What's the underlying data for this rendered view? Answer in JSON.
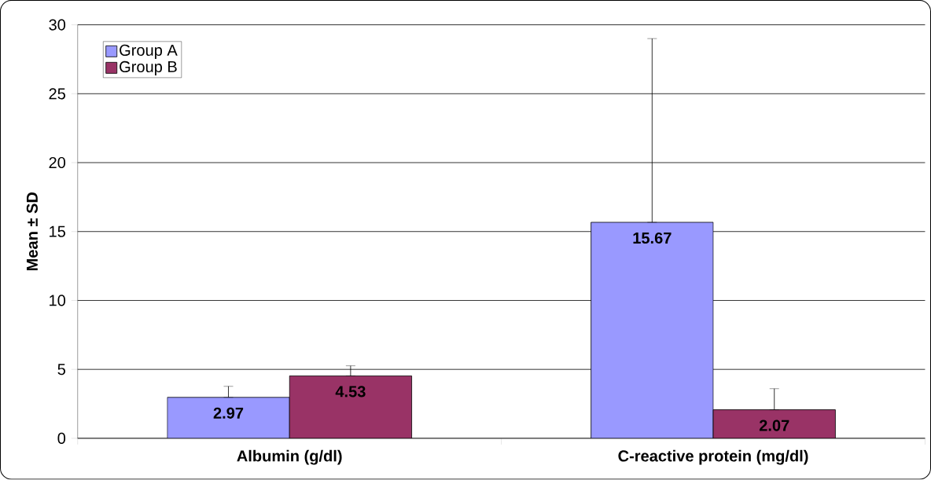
{
  "chart_data": {
    "type": "bar",
    "ylabel": "Mean ± SD",
    "categories": [
      "Albumin (g/dl)",
      "C-reactive protein (mg/dl)"
    ],
    "series": [
      {
        "name": "Group A",
        "color": "#9999ff",
        "values": [
          2.97,
          15.67
        ],
        "errors": [
          [
            2.97,
            3.77
          ],
          [
            15.67,
            29.0
          ]
        ]
      },
      {
        "name": "Group B",
        "color": "#993366",
        "values": [
          4.53,
          2.07
        ],
        "errors": [
          [
            4.53,
            5.26
          ],
          [
            2.07,
            3.6
          ]
        ]
      }
    ],
    "ylim": [
      0,
      30
    ],
    "yticks": [
      0,
      5,
      10,
      15,
      20,
      25,
      30
    ],
    "grid": "y",
    "legend": "top left",
    "data_labels": true
  }
}
